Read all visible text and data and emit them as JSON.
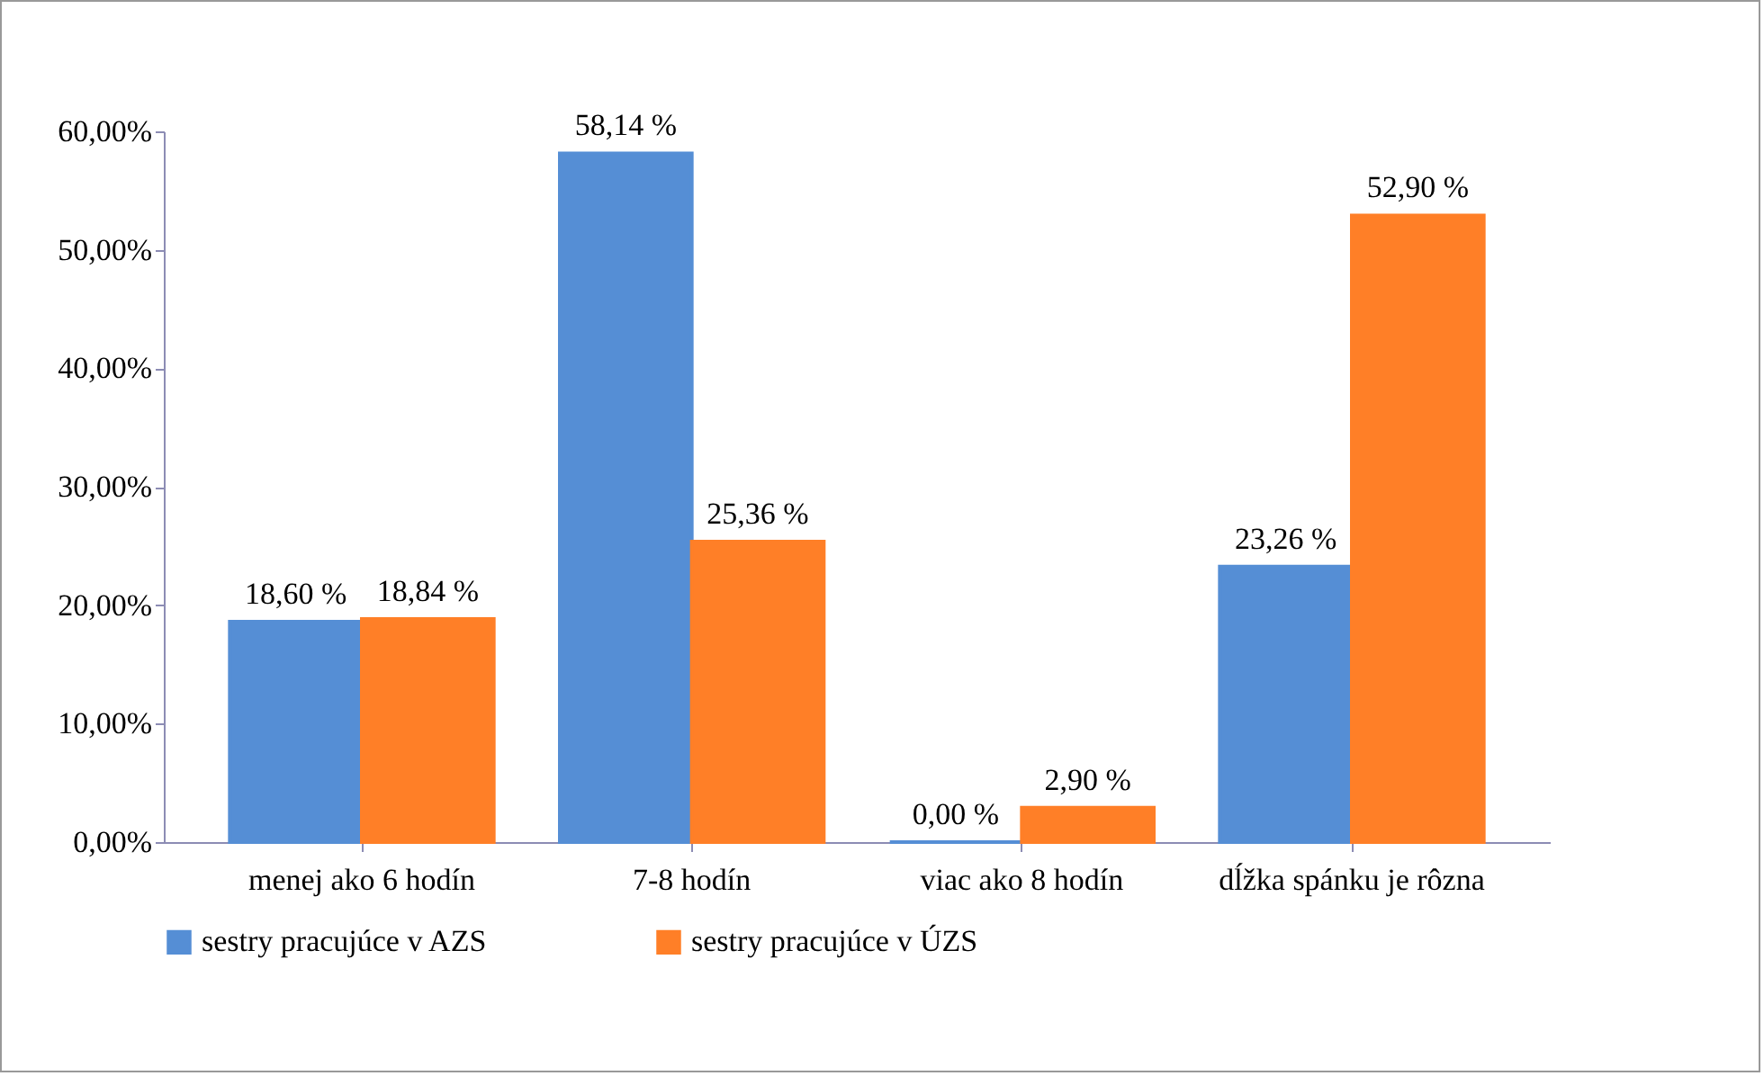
{
  "chart_data": {
    "type": "bar",
    "categories": [
      "menej ako 6 hodín",
      "7-8 hodín",
      "viac ako 8 hodín",
      "dĺžka spánku je rôzna"
    ],
    "series": [
      {
        "name": "sestry pracujúce v AZS",
        "color": "#558ed5",
        "values": [
          18.6,
          58.14,
          0,
          23.26
        ],
        "value_labels": [
          "18,60 %",
          "58,14 %",
          "0,00 %",
          "23,26 %"
        ]
      },
      {
        "name": "sestry pracujúce v ÚZS",
        "color": "#ff7f27",
        "values": [
          18.84,
          25.36,
          2.9,
          52.9
        ],
        "value_labels": [
          "18,84 %",
          "25,36 %",
          "2,90 %",
          "52,90 %"
        ]
      }
    ],
    "ylim": [
      0,
      60
    ],
    "yticks": [
      {
        "value": 0,
        "label": "0,00%"
      },
      {
        "value": 10,
        "label": "10,00%"
      },
      {
        "value": 20,
        "label": "20,00%"
      },
      {
        "value": 30,
        "label": "30,00%"
      },
      {
        "value": 40,
        "label": "40,00%"
      },
      {
        "value": 50,
        "label": "50,00%"
      },
      {
        "value": 60,
        "label": "60,00%"
      }
    ],
    "grid": false,
    "legend": "bottom"
  }
}
